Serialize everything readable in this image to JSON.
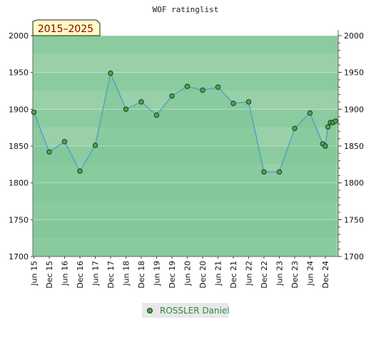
{
  "chart_data": {
    "type": "area",
    "title": "WOF ratinglist",
    "period_badge": "2015–2025",
    "ylim": [
      1700,
      2000
    ],
    "yticks": [
      1700,
      1750,
      1800,
      1850,
      1900,
      1950,
      2000
    ],
    "xticks": [
      "Jun 15",
      "Dec 15",
      "Jun 16",
      "Dec 16",
      "Jun 17",
      "Dec 17",
      "Jun 18",
      "Dec 18",
      "Jun 19",
      "Dec 19",
      "Jun 20",
      "Dec 20",
      "Jun 21",
      "Dec 21",
      "Jun 22",
      "Dec 22",
      "Jun 23",
      "Dec 23",
      "Jun 24",
      "Dec 24"
    ],
    "grid": true,
    "legend_position": "bottom-center",
    "colors": {
      "line": "#4a9fc8",
      "marker_fill": "#4fa64f",
      "marker_stroke": "#1a3a1a",
      "area_fill": "#7cc495",
      "legend_bg": "#e8e8e8"
    },
    "series": [
      {
        "name": "ROSSLER Daniel",
        "points": [
          {
            "x": "2015-06",
            "y": 1896
          },
          {
            "x": "2015-12",
            "y": 1842
          },
          {
            "x": "2016-06",
            "y": 1856
          },
          {
            "x": "2016-12",
            "y": 1816
          },
          {
            "x": "2017-06",
            "y": 1851
          },
          {
            "x": "2017-12",
            "y": 1949
          },
          {
            "x": "2018-06",
            "y": 1900
          },
          {
            "x": "2018-12",
            "y": 1910
          },
          {
            "x": "2019-06",
            "y": 1892
          },
          {
            "x": "2019-12",
            "y": 1918
          },
          {
            "x": "2020-06",
            "y": 1931
          },
          {
            "x": "2020-12",
            "y": 1926
          },
          {
            "x": "2021-06",
            "y": 1930
          },
          {
            "x": "2021-12",
            "y": 1908
          },
          {
            "x": "2022-06",
            "y": 1910
          },
          {
            "x": "2022-12",
            "y": 1815
          },
          {
            "x": "2023-06",
            "y": 1815
          },
          {
            "x": "2023-12",
            "y": 1874
          },
          {
            "x": "2024-06",
            "y": 1895
          },
          {
            "x": "2024-11",
            "y": 1853
          },
          {
            "x": "2024-12",
            "y": 1850
          },
          {
            "x": "2025-01",
            "y": 1876
          },
          {
            "x": "2025-02",
            "y": 1882
          },
          {
            "x": "2025-03",
            "y": 1882
          },
          {
            "x": "2025-04",
            "y": 1884
          }
        ]
      }
    ]
  }
}
